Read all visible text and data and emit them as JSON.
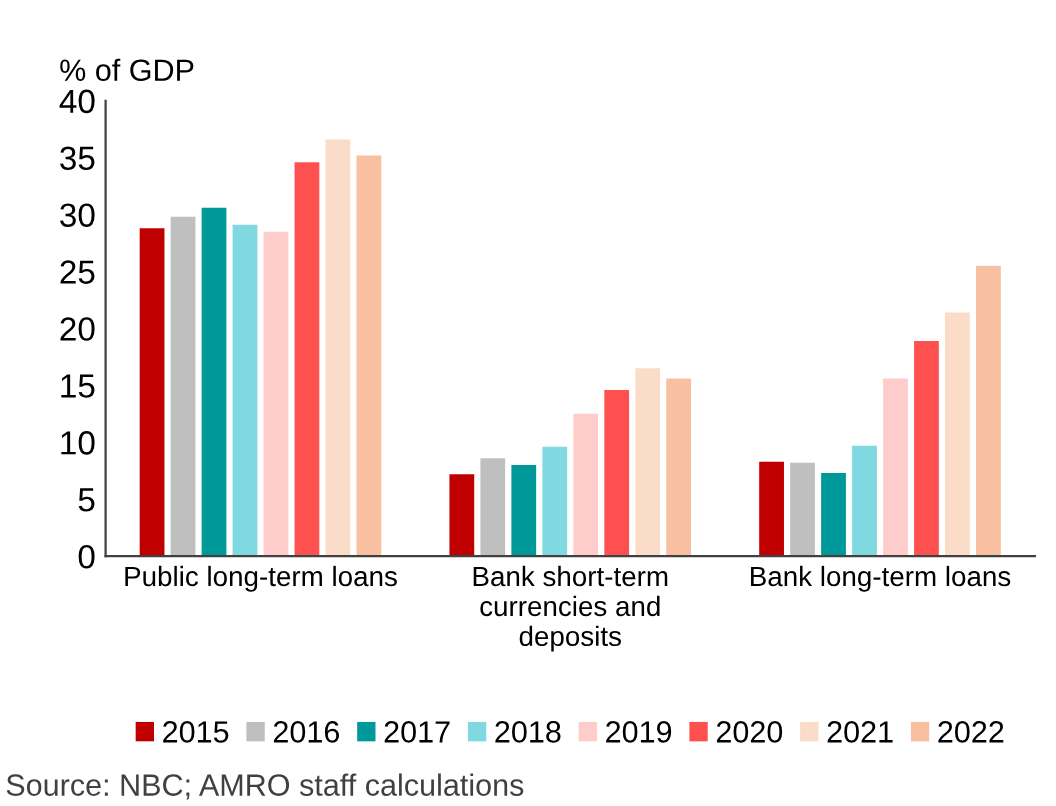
{
  "chart_data": {
    "type": "bar",
    "ylabel": "% of GDP",
    "categories": [
      "Public long-term loans",
      "Bank short-term\ncurrencies and\ndeposits",
      "Bank long-term loans"
    ],
    "series": [
      {
        "name": "2015",
        "color": "#c00000",
        "values": [
          28.8,
          7.2,
          8.3
        ]
      },
      {
        "name": "2016",
        "color": "#bfbfbf",
        "values": [
          29.8,
          8.6,
          8.2
        ]
      },
      {
        "name": "2017",
        "color": "#009999",
        "values": [
          30.6,
          8.0,
          7.3
        ]
      },
      {
        "name": "2018",
        "color": "#80d8e0",
        "values": [
          29.1,
          9.6,
          9.7
        ]
      },
      {
        "name": "2019",
        "color": "#ffcccc",
        "values": [
          28.5,
          12.5,
          15.6
        ]
      },
      {
        "name": "2020",
        "color": "#ff5050",
        "values": [
          34.6,
          14.6,
          18.9
        ]
      },
      {
        "name": "2021",
        "color": "#fbdcc8",
        "values": [
          36.6,
          16.5,
          21.4
        ]
      },
      {
        "name": "2022",
        "color": "#f8c0a0",
        "values": [
          35.2,
          15.6,
          25.5
        ]
      }
    ],
    "ylim": [
      0,
      40
    ],
    "yticks": [
      0,
      5,
      10,
      15,
      20,
      25,
      30,
      35,
      40
    ],
    "grid": false,
    "legend": "bottom",
    "annotations": [
      "Source: NBC; AMRO staff calculations"
    ]
  }
}
